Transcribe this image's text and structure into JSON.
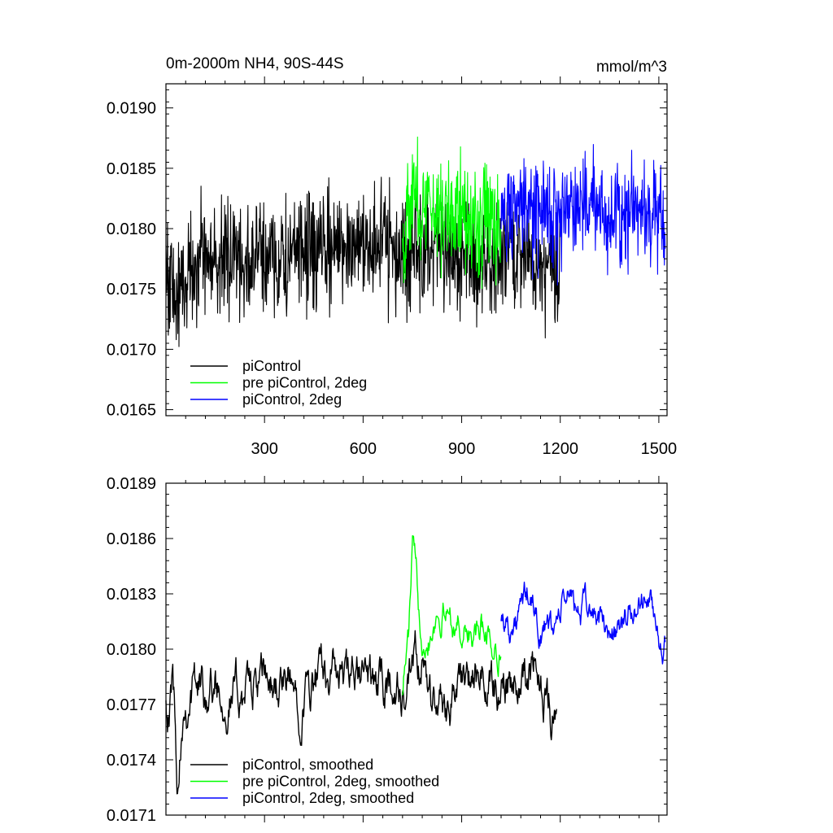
{
  "chart_data": [
    {
      "type": "line",
      "title": "0m-2000m NH4, 90S-44S",
      "units": "mmol/m^3",
      "xlim": [
        0,
        1525
      ],
      "ylim": [
        0.01645,
        0.0192
      ],
      "xticks": [
        300,
        600,
        900,
        1200,
        1500
      ],
      "xtick_labels": [
        "300",
        "600",
        "900",
        "1200",
        "1500"
      ],
      "yticks": [
        0.0165,
        0.017,
        0.0175,
        0.018,
        0.0185,
        0.019
      ],
      "ytick_labels": [
        "0.0165",
        "0.0170",
        "0.0175",
        "0.0180",
        "0.0185",
        "0.0190"
      ],
      "legend_position": "bottom-left",
      "grid": false,
      "series": [
        {
          "name": "piControl",
          "color": "#000000",
          "x": [
            0,
            30,
            60,
            100,
            150,
            200,
            250,
            300,
            350,
            400,
            450,
            500,
            550,
            600,
            650,
            700,
            750,
            800,
            850,
            900,
            950,
            1000,
            1050,
            1100,
            1150,
            1200
          ],
          "y": [
            0.0177,
            0.0174,
            0.0176,
            0.0178,
            0.0177,
            0.0178,
            0.0177,
            0.0178,
            0.0177,
            0.0178,
            0.0178,
            0.0178,
            0.0179,
            0.0179,
            0.0179,
            0.0178,
            0.0178,
            0.0178,
            0.0177,
            0.0178,
            0.0177,
            0.0177,
            0.0178,
            0.0178,
            0.0177,
            0.0177
          ],
          "amplitude": 0.00032
        },
        {
          "name": "pre piControl, 2deg",
          "color": "#00ff00",
          "x": [
            720,
            740,
            760,
            780,
            800,
            820,
            840,
            860,
            880,
            900,
            920,
            940,
            960,
            980,
            1000,
            1020
          ],
          "y": [
            0.0179,
            0.0182,
            0.0183,
            0.0181,
            0.0182,
            0.0182,
            0.0181,
            0.0182,
            0.0181,
            0.0182,
            0.0181,
            0.0181,
            0.018,
            0.0181,
            0.018,
            0.018
          ],
          "amplitude": 0.0003
        },
        {
          "name": "piControl, 2deg",
          "color": "#0000ff",
          "x": [
            1020,
            1060,
            1100,
            1140,
            1180,
            1220,
            1260,
            1300,
            1340,
            1380,
            1420,
            1460,
            1500,
            1520
          ],
          "y": [
            0.0181,
            0.0182,
            0.0181,
            0.0181,
            0.0181,
            0.0182,
            0.0182,
            0.0182,
            0.0181,
            0.0181,
            0.0182,
            0.0182,
            0.0181,
            0.018
          ],
          "amplitude": 0.00028
        }
      ]
    },
    {
      "type": "line",
      "title": "",
      "xlim": [
        0,
        1525
      ],
      "ylim": [
        0.0171,
        0.0189
      ],
      "xticks": [
        300,
        600,
        900,
        1200,
        1500
      ],
      "yticks": [
        0.0171,
        0.0174,
        0.0177,
        0.018,
        0.0183,
        0.0186,
        0.0189
      ],
      "ytick_labels": [
        "0.0171",
        "0.0174",
        "0.0177",
        "0.0180",
        "0.0183",
        "0.0186",
        "0.0189"
      ],
      "legend_position": "bottom-left",
      "grid": false,
      "series": [
        {
          "name": "piControl, smoothed",
          "color": "#000000",
          "x": [
            0,
            10,
            20,
            35,
            50,
            80,
            100,
            150,
            200,
            250,
            300,
            350,
            400,
            450,
            500,
            550,
            600,
            650,
            700,
            730,
            760,
            790,
            820,
            850,
            880,
            900,
            950,
            1000,
            1050,
            1100,
            1150,
            1190
          ],
          "y": [
            0.0178,
            0.0176,
            0.0179,
            0.0173,
            0.0177,
            0.0178,
            0.0178,
            0.0178,
            0.01775,
            0.0178,
            0.0178,
            0.0178,
            0.01775,
            0.0178,
            0.0179,
            0.0178,
            0.01785,
            0.0178,
            0.0178,
            0.0177,
            0.0179,
            0.0178,
            0.0177,
            0.0177,
            0.0178,
            0.0178,
            0.0178,
            0.0178,
            0.01785,
            0.0179,
            0.0178,
            0.0176
          ],
          "amplitude": 0.00018
        },
        {
          "name": "pre piControl, 2deg, smoothed",
          "color": "#00ff00",
          "x": [
            720,
            740,
            750,
            760,
            770,
            780,
            800,
            820,
            840,
            860,
            880,
            900,
            920,
            940,
            960,
            980,
            1000,
            1020
          ],
          "y": [
            0.0178,
            0.0181,
            0.01855,
            0.0184,
            0.0182,
            0.0181,
            0.0181,
            0.0182,
            0.0182,
            0.0182,
            0.01815,
            0.0181,
            0.0181,
            0.01805,
            0.0181,
            0.0181,
            0.018,
            0.018
          ],
          "amplitude": 0.00012
        },
        {
          "name": "piControl, 2deg, smoothed",
          "color": "#0000ff",
          "x": [
            1020,
            1060,
            1100,
            1140,
            1180,
            1220,
            1260,
            1300,
            1340,
            1380,
            1420,
            1460,
            1500,
            1520
          ],
          "y": [
            0.0182,
            0.0181,
            0.0183,
            0.0181,
            0.0181,
            0.0183,
            0.0182,
            0.0182,
            0.0181,
            0.0181,
            0.0182,
            0.0183,
            0.0181,
            0.018
          ],
          "amplitude": 0.00012
        }
      ]
    }
  ]
}
